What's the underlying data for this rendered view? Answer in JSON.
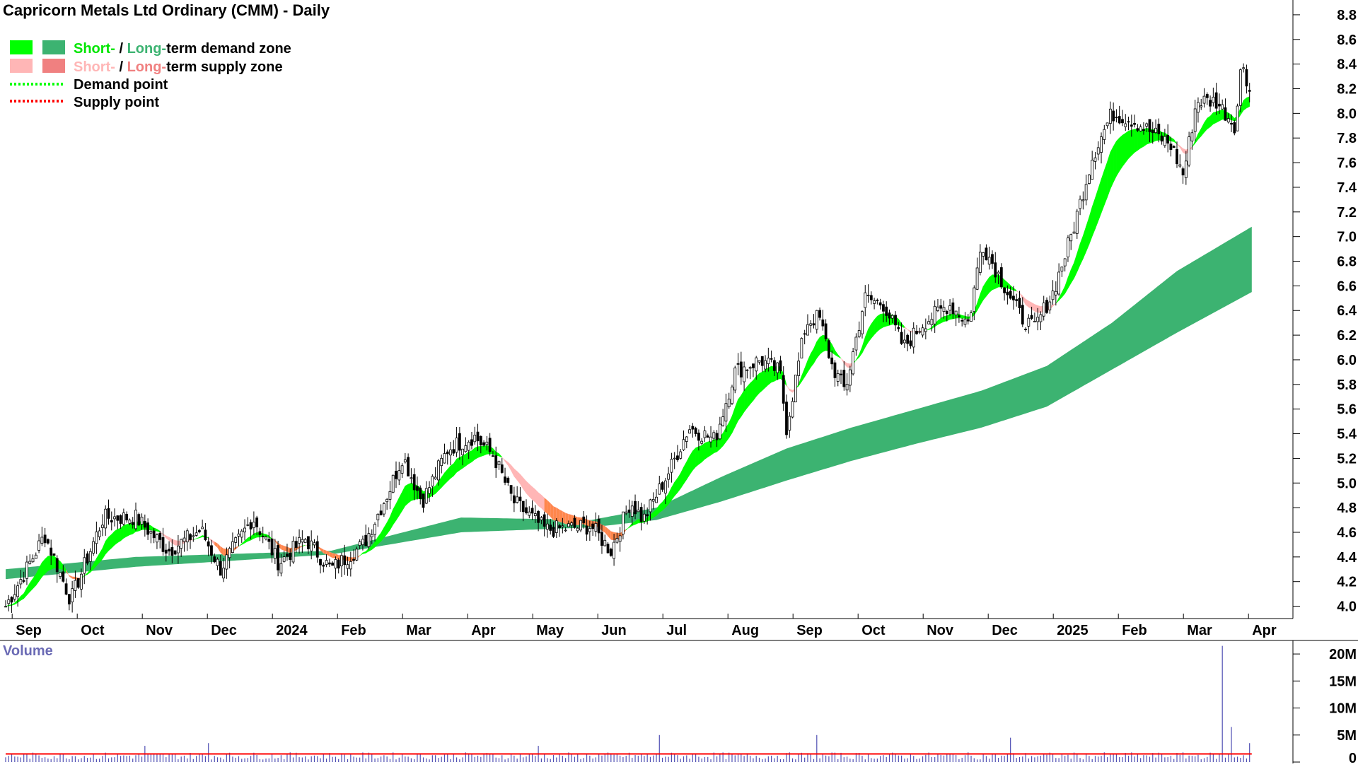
{
  "chart_data": [
    {
      "type": "candlestick",
      "title": "Capricorn Metals Ltd Ordinary (CMM) - Daily",
      "legend": {
        "placement": "top-left",
        "items": [
          {
            "short": "Short-",
            "sep": " / ",
            "long": "Long-",
            "rest": "term demand zone",
            "short_color": "#00e600",
            "long_color": "#3cb371",
            "swatch_short": "#00ff00",
            "swatch_long": "#3cb371"
          },
          {
            "short": "Short-",
            "sep": " / ",
            "long": "Long-",
            "rest": "term supply zone",
            "short_color": "#ffb6b6",
            "long_color": "#f08080",
            "swatch_short": "#ffb6b6",
            "swatch_long": "#f08080"
          },
          {
            "label": "Demand point",
            "line_color": "#00ff00"
          },
          {
            "label": "Supply point",
            "line_color": "#ff0000"
          }
        ]
      },
      "x_ticks": [
        "Sep",
        "Oct",
        "Nov",
        "Dec",
        "2024",
        "Feb",
        "Mar",
        "Apr",
        "May",
        "Jun",
        "Jul",
        "Aug",
        "Sep",
        "Oct",
        "Nov",
        "Dec",
        "2025",
        "Feb",
        "Mar",
        "Apr"
      ],
      "y_ticks": [
        "4.0",
        "4.2",
        "4.4",
        "4.6",
        "4.8",
        "5.0",
        "5.2",
        "5.4",
        "5.6",
        "5.8",
        "6.0",
        "6.2",
        "6.4",
        "6.6",
        "6.8",
        "7.0",
        "7.2",
        "7.4",
        "7.6",
        "7.8",
        "8.0",
        "8.2",
        "8.4",
        "8.6",
        "8.8"
      ],
      "ylim": [
        3.9,
        8.92
      ],
      "y_axis_side": "right",
      "grid": false,
      "colors": {
        "candle": "#000000",
        "short_demand": "#00ff00",
        "long_demand": "#3cb371",
        "short_supply": "#ffb6b6",
        "long_supply": "#f08080",
        "mixed_zone": "#ff7f3a"
      },
      "price_anchors": [
        {
          "month": 0,
          "close": 4.0
        },
        {
          "month": 0.3,
          "close": 4.28
        },
        {
          "month": 0.6,
          "close": 4.58
        },
        {
          "month": 1.0,
          "close": 4.05
        },
        {
          "month": 1.5,
          "close": 4.72
        },
        {
          "month": 2.0,
          "close": 4.72
        },
        {
          "month": 2.5,
          "close": 4.45
        },
        {
          "month": 3.0,
          "close": 4.62
        },
        {
          "month": 3.3,
          "close": 4.3
        },
        {
          "month": 3.8,
          "close": 4.72
        },
        {
          "month": 4.2,
          "close": 4.35
        },
        {
          "month": 4.6,
          "close": 4.55
        },
        {
          "month": 5.0,
          "close": 4.3
        },
        {
          "month": 5.5,
          "close": 4.5
        },
        {
          "month": 5.9,
          "close": 4.95
        },
        {
          "month": 6.1,
          "close": 5.22
        },
        {
          "month": 6.4,
          "close": 4.85
        },
        {
          "month": 6.8,
          "close": 5.28
        },
        {
          "month": 7.2,
          "close": 5.38
        },
        {
          "month": 7.5,
          "close": 5.22
        },
        {
          "month": 7.8,
          "close": 4.85
        },
        {
          "month": 8.3,
          "close": 4.62
        },
        {
          "month": 9.0,
          "close": 4.65
        },
        {
          "month": 9.3,
          "close": 4.45
        },
        {
          "month": 9.6,
          "close": 4.85
        },
        {
          "month": 9.8,
          "close": 4.7
        },
        {
          "month": 10.2,
          "close": 5.1
        },
        {
          "month": 10.5,
          "close": 5.45
        },
        {
          "month": 10.9,
          "close": 5.35
        },
        {
          "month": 11.2,
          "close": 5.9
        },
        {
          "month": 11.6,
          "close": 6.0
        },
        {
          "month": 11.9,
          "close": 5.9
        },
        {
          "month": 12.0,
          "close": 5.45
        },
        {
          "month": 12.3,
          "close": 6.3
        },
        {
          "month": 12.5,
          "close": 6.35
        },
        {
          "month": 12.7,
          "close": 5.95
        },
        {
          "month": 12.9,
          "close": 5.75
        },
        {
          "month": 13.2,
          "close": 6.5
        },
        {
          "month": 13.5,
          "close": 6.45
        },
        {
          "month": 13.8,
          "close": 6.1
        },
        {
          "month": 14.1,
          "close": 6.3
        },
        {
          "month": 14.5,
          "close": 6.45
        },
        {
          "month": 14.8,
          "close": 6.3
        },
        {
          "month": 15.0,
          "close": 6.95
        },
        {
          "month": 15.3,
          "close": 6.65
        },
        {
          "month": 15.6,
          "close": 6.35
        },
        {
          "month": 15.8,
          "close": 6.25
        },
        {
          "month": 16.1,
          "close": 6.55
        },
        {
          "month": 16.4,
          "close": 7.05
        },
        {
          "month": 16.7,
          "close": 7.65
        },
        {
          "month": 17.0,
          "close": 8.0
        },
        {
          "month": 17.3,
          "close": 7.95
        },
        {
          "month": 17.6,
          "close": 7.85
        },
        {
          "month": 17.9,
          "close": 7.75
        },
        {
          "month": 18.1,
          "close": 7.5
        },
        {
          "month": 18.3,
          "close": 8.1
        },
        {
          "month": 18.6,
          "close": 8.1
        },
        {
          "month": 18.9,
          "close": 7.9
        },
        {
          "month": 19.0,
          "close": 8.45
        },
        {
          "month": 19.15,
          "close": 8.1
        }
      ],
      "long_zone": {
        "lower": [
          {
            "month": 0,
            "value": 4.22
          },
          {
            "month": 2,
            "value": 4.32
          },
          {
            "month": 5,
            "value": 4.42
          },
          {
            "month": 7,
            "value": 4.6
          },
          {
            "month": 9,
            "value": 4.64
          },
          {
            "month": 10,
            "value": 4.7
          },
          {
            "month": 11,
            "value": 4.85
          },
          {
            "month": 12,
            "value": 5.02
          },
          {
            "month": 13,
            "value": 5.18
          },
          {
            "month": 14,
            "value": 5.32
          },
          {
            "month": 15,
            "value": 5.45
          },
          {
            "month": 16,
            "value": 5.62
          },
          {
            "month": 17,
            "value": 5.92
          },
          {
            "month": 18,
            "value": 6.22
          },
          {
            "month": 19.15,
            "value": 6.55
          }
        ],
        "upper": [
          {
            "month": 0,
            "value": 4.3
          },
          {
            "month": 2,
            "value": 4.4
          },
          {
            "month": 5,
            "value": 4.45
          },
          {
            "month": 7,
            "value": 4.72
          },
          {
            "month": 9,
            "value": 4.7
          },
          {
            "month": 10,
            "value": 4.8
          },
          {
            "month": 11,
            "value": 5.05
          },
          {
            "month": 12,
            "value": 5.28
          },
          {
            "month": 13,
            "value": 5.45
          },
          {
            "month": 14,
            "value": 5.6
          },
          {
            "month": 15,
            "value": 5.75
          },
          {
            "month": 16,
            "value": 5.95
          },
          {
            "month": 17,
            "value": 6.3
          },
          {
            "month": 18,
            "value": 6.72
          },
          {
            "month": 19.15,
            "value": 7.08
          }
        ]
      }
    },
    {
      "type": "bar",
      "title": "Volume",
      "y_ticks": [
        "0",
        "5M",
        "10M",
        "15M",
        "20M"
      ],
      "ylim": [
        0,
        22500000
      ],
      "colors": {
        "bars": "#5050b4",
        "average": "#ff0000",
        "title": "#6b6bb5"
      },
      "typical_volume": 1200000,
      "average_volume": 1500000,
      "spikes": [
        {
          "month": 18.7,
          "volume": 21500000
        },
        {
          "month": 18.85,
          "volume": 6500000
        },
        {
          "month": 10.05,
          "volume": 5000000
        },
        {
          "month": 12.45,
          "volume": 5000000
        },
        {
          "month": 15.45,
          "volume": 4500000
        },
        {
          "month": 3.1,
          "volume": 3500000
        },
        {
          "month": 2.15,
          "volume": 3000000
        },
        {
          "month": 8.2,
          "volume": 3000000
        },
        {
          "month": 19.1,
          "volume": 3500000
        }
      ]
    }
  ]
}
